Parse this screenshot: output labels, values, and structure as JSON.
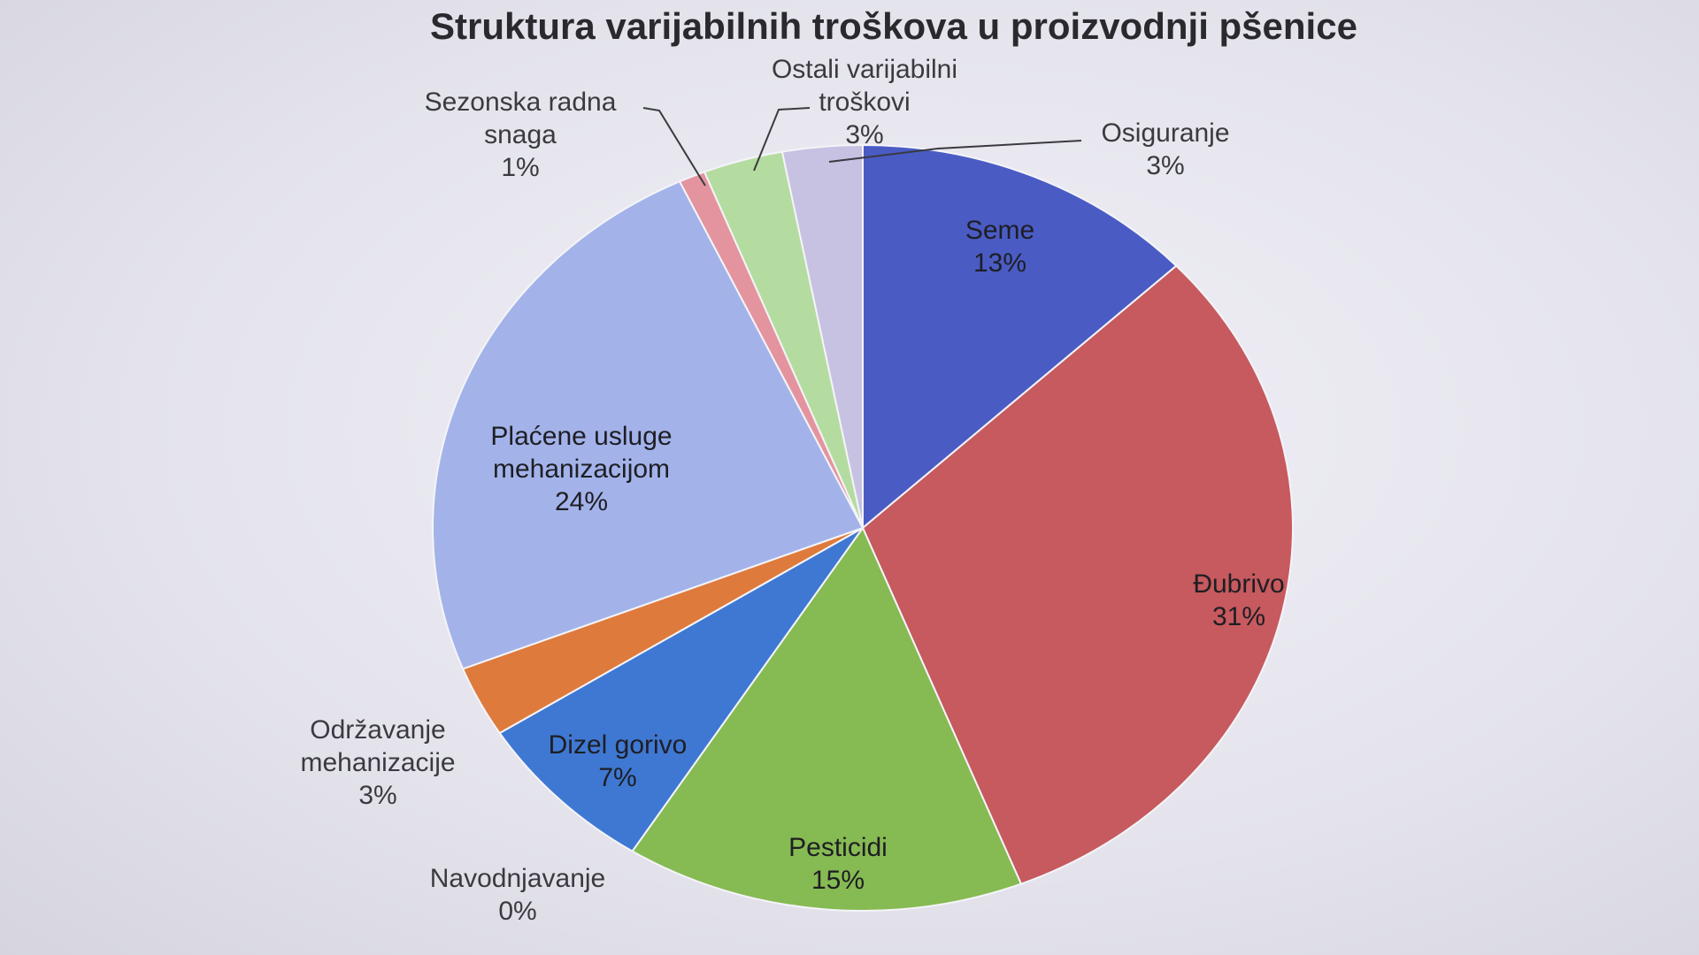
{
  "chart_data": {
    "type": "pie",
    "title": "Struktura varijabilnih troškova u proizvodnji pšenice",
    "slices": [
      {
        "name": "Seme",
        "value_label": "13%",
        "value": 13,
        "color": "#4a5cc4"
      },
      {
        "name": "Đubrivo",
        "value_label": "31%",
        "value": 31,
        "color": "#c65a5e"
      },
      {
        "name": "Pesticidi",
        "value_label": "15%",
        "value": 15,
        "color": "#86ba52"
      },
      {
        "name": "Navodnjavanje",
        "value_label": "0%",
        "value": 0,
        "color": "#4a8fd0"
      },
      {
        "name": "Dizel gorivo",
        "value_label": "7%",
        "value": 7,
        "color": "#3f78d2"
      },
      {
        "name": "Održavanje mehanizacije",
        "value_label": "3%",
        "value": 3,
        "color": "#de7a3c"
      },
      {
        "name": "Plaćene usluge mehanizacijom",
        "value_label": "24%",
        "value": 24,
        "color": "#a3b3ea"
      },
      {
        "name": "Sezonska radna snaga",
        "value_label": "1%",
        "value": 1,
        "color": "#e4949e"
      },
      {
        "name": "Ostali varijabilni troškovi",
        "value_label": "3%",
        "value": 3,
        "color": "#b5dca0"
      },
      {
        "name": "Osiguranje",
        "value_label": "3%",
        "value": 3,
        "color": "#c7c1e2"
      }
    ],
    "label_lines": {
      "Seme": [
        "Seme"
      ],
      "Đubrivo": [
        "Đubrivo"
      ],
      "Pesticidi": [
        "Pesticidi"
      ],
      "Navodnjavanje": [
        "Navodnjavanje"
      ],
      "Dizel gorivo": [
        "Dizel gorivo"
      ],
      "Održavanje mehanizacije": [
        "Održavanje",
        "mehanizacije"
      ],
      "Plaćene usluge mehanizacijom": [
        "Plaćene usluge",
        "mehanizacijom"
      ],
      "Sezonska radna snaga": [
        "Sezonska radna",
        "snaga"
      ],
      "Ostali varijabilni troškovi": [
        "Ostali varijabilni",
        "troškovi"
      ],
      "Osiguranje": [
        "Osiguranje"
      ]
    }
  }
}
